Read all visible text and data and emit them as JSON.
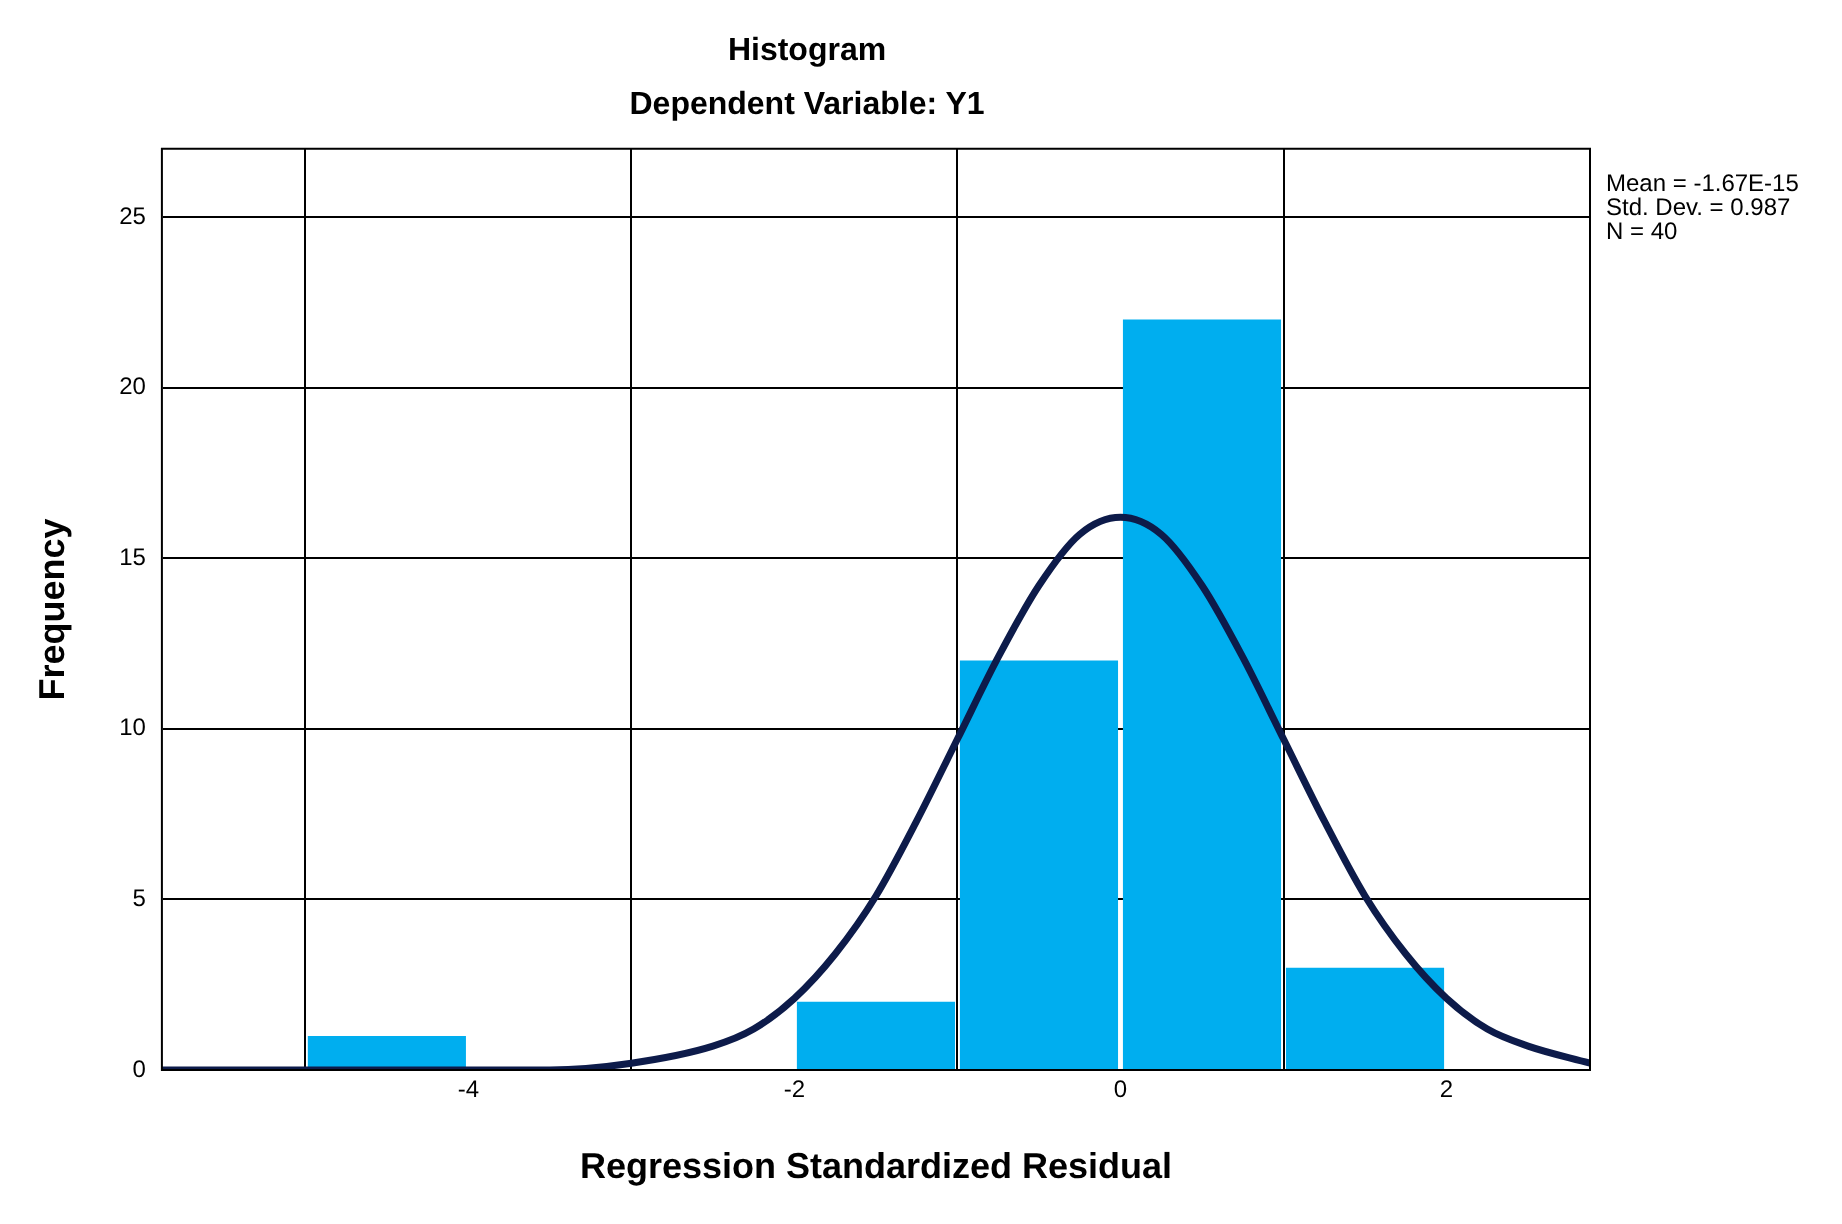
{
  "chart_data": {
    "type": "histogram",
    "title": "Histogram",
    "subtitle": "Dependent Variable: Y1",
    "xlabel": "Regression Standardized Residual",
    "ylabel": "Frequency",
    "bins": [
      -5,
      -4,
      -3,
      -2,
      -1,
      0,
      1,
      2
    ],
    "values": [
      1,
      0,
      0,
      2,
      12,
      22,
      3
    ],
    "color": "#00aeef",
    "series": [
      {
        "type": "line",
        "color": "#0d1b4a",
        "x": [
          -5.88,
          -4,
          -3.5,
          -3,
          -2.5,
          -2.25,
          -2,
          -1.75,
          -1.5,
          -1.25,
          -1,
          -0.75,
          -0.5,
          -0.25,
          0,
          0.25,
          0.5,
          0.75,
          1,
          1.25,
          1.5,
          1.75,
          2,
          2.25,
          2.5,
          2.88
        ],
        "values": [
          0,
          0,
          0,
          0.2,
          0.7,
          1.2,
          2.1,
          3.4,
          5.1,
          7.3,
          9.7,
          12.1,
          14.2,
          15.7,
          16.2,
          15.7,
          14.2,
          12.1,
          9.7,
          7.3,
          5.1,
          3.4,
          2.1,
          1.2,
          0.7,
          0.2
        ]
      }
    ],
    "xlim": [
      -5.88,
      2.88
    ],
    "xticks": [
      -4,
      -2,
      0,
      2
    ],
    "ylim": [
      0,
      27
    ],
    "yticks": [
      0,
      5,
      10,
      15,
      20,
      25
    ],
    "grid": true,
    "legend": false,
    "annotations": [
      "Mean = -1.67E-15",
      "Std. Dev. = 0.987",
      "N = 40"
    ]
  }
}
